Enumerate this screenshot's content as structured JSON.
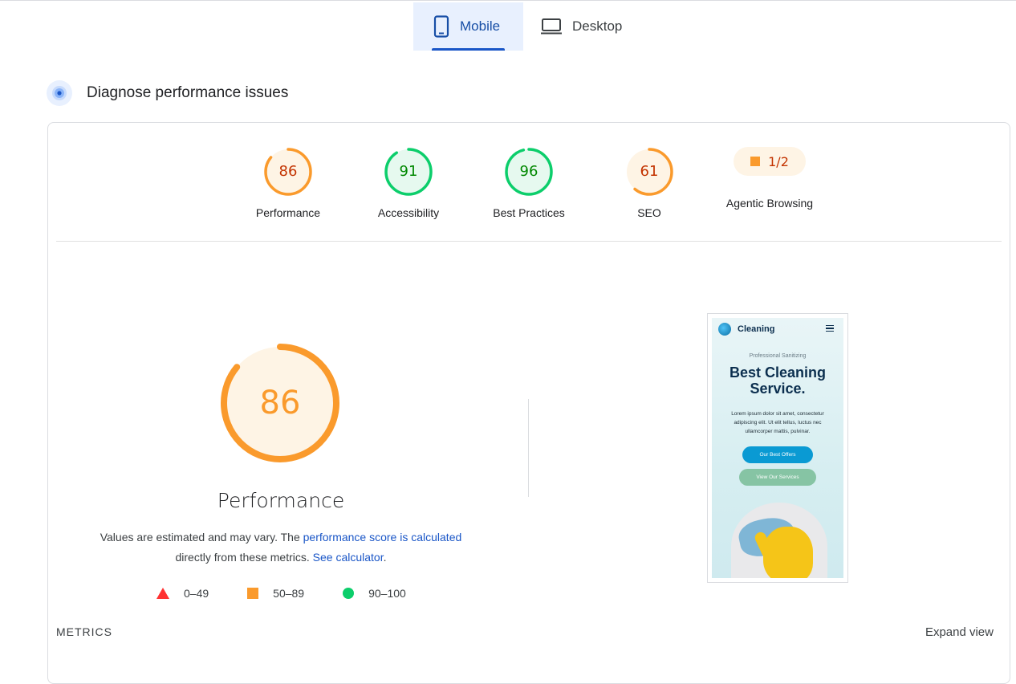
{
  "tabs": [
    {
      "label": "Mobile",
      "icon": "smartphone-icon",
      "active": true
    },
    {
      "label": "Desktop",
      "icon": "laptop-icon",
      "active": false
    }
  ],
  "section": {
    "title": "Diagnose performance issues",
    "icon": "gauge-icon"
  },
  "colors": {
    "orange": "#fa9a2c",
    "orange_text": "#c33300",
    "green": "#0cce6b",
    "green_text": "#008800",
    "red": "#ff3333",
    "link": "#1a56c7"
  },
  "categories": [
    {
      "label": "Performance",
      "score": "86",
      "status": "average"
    },
    {
      "label": "Accessibility",
      "score": "91",
      "status": "pass"
    },
    {
      "label": "Best Practices",
      "score": "96",
      "status": "pass"
    },
    {
      "label": "SEO",
      "score": "61",
      "status": "average"
    },
    {
      "label": "Agentic Browsing",
      "score": "1/2",
      "status": "average"
    }
  ],
  "main": {
    "score": "86",
    "title": "Performance",
    "desc_prefix": "Values are estimated and may vary. The ",
    "desc_link1": "performance score is calculated",
    "desc_middle": "directly from these metrics.",
    "desc_link2": "See calculator",
    "desc_suffix": "."
  },
  "legend": [
    {
      "range": "0–49",
      "shape": "triangle"
    },
    {
      "range": "50–89",
      "shape": "square"
    },
    {
      "range": "90–100",
      "shape": "circle"
    }
  ],
  "preview": {
    "brand": "Cleaning",
    "subtitle": "Professional Sanitizing",
    "heading_line1": "Best Cleaning",
    "heading_line2": "Service.",
    "body": "Lorem ipsum dolor sit amet, consectetur adipiscing elit. Ut elit tellus, luctus nec ullamcorper mattis, pulvinar.",
    "btn_primary": "Our Best Offers",
    "btn_secondary": "View Our Services"
  },
  "footer": {
    "metrics_label": "METRICS",
    "expand_label": "Expand view"
  }
}
